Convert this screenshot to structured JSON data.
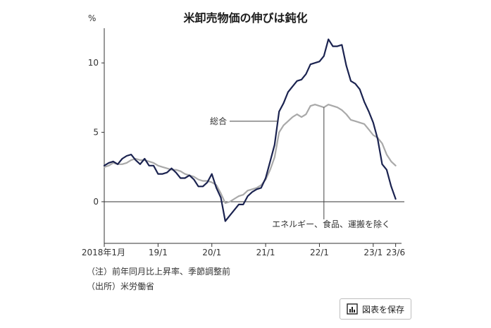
{
  "title": "米卸売物価の伸びは鈍化",
  "footnotes": {
    "note": "（注）前年同月比上昇率、季節調整前",
    "source": "（出所）米労働省"
  },
  "save_button": {
    "label": "図表を保存",
    "icon": "bar-chart-icon"
  },
  "chart_data": {
    "type": "line",
    "title": "米卸売物価の伸びは鈍化",
    "ylabel": "%",
    "ylim": [
      -3,
      12.5
    ],
    "yticks": [
      0,
      5,
      10
    ],
    "xlim": [
      2018.0,
      2023.5
    ],
    "xtick_labels": [
      {
        "x": 2018.0,
        "label": "2018年1月"
      },
      {
        "x": 2019.0,
        "label": "19/1"
      },
      {
        "x": 2020.0,
        "label": "20/1"
      },
      {
        "x": 2021.0,
        "label": "21/1"
      },
      {
        "x": 2022.0,
        "label": "22/1"
      },
      {
        "x": 2023.0,
        "label": "23/1"
      },
      {
        "x": 2023.4167,
        "label": "23/6"
      }
    ],
    "annotations": [
      {
        "series": "総合",
        "label": "総合"
      },
      {
        "series": "エネルギー、食品、運搬を除く",
        "label": "エネルギー、食品、運搬を除く"
      }
    ],
    "grid": false,
    "colors": {
      "総合": "#1b2350",
      "エネルギー、食品、運搬を除く": "#a9a9a9"
    },
    "series": [
      {
        "name": "総合",
        "x": [
          2018.0,
          2018.0833,
          2018.1667,
          2018.25,
          2018.3333,
          2018.4167,
          2018.5,
          2018.5833,
          2018.6667,
          2018.75,
          2018.8333,
          2018.9167,
          2019.0,
          2019.0833,
          2019.1667,
          2019.25,
          2019.3333,
          2019.4167,
          2019.5,
          2019.5833,
          2019.6667,
          2019.75,
          2019.8333,
          2019.9167,
          2020.0,
          2020.0833,
          2020.1667,
          2020.25,
          2020.3333,
          2020.4167,
          2020.5,
          2020.5833,
          2020.6667,
          2020.75,
          2020.8333,
          2020.9167,
          2021.0,
          2021.0833,
          2021.1667,
          2021.25,
          2021.3333,
          2021.4167,
          2021.5,
          2021.5833,
          2021.6667,
          2021.75,
          2021.8333,
          2021.9167,
          2022.0,
          2022.0833,
          2022.1667,
          2022.25,
          2022.3333,
          2022.4167,
          2022.5,
          2022.5833,
          2022.6667,
          2022.75,
          2022.8333,
          2022.9167,
          2023.0,
          2023.0833,
          2023.1667,
          2023.25,
          2023.3333,
          2023.4167
        ],
        "values": [
          2.6,
          2.8,
          2.9,
          2.7,
          3.1,
          3.3,
          3.4,
          3.0,
          2.7,
          3.1,
          2.6,
          2.6,
          2.0,
          2.0,
          2.1,
          2.4,
          2.1,
          1.7,
          1.7,
          1.9,
          1.6,
          1.1,
          1.1,
          1.4,
          2.0,
          1.0,
          0.3,
          -1.4,
          -1.0,
          -0.6,
          -0.2,
          -0.2,
          0.4,
          0.7,
          0.9,
          1.0,
          1.7,
          2.9,
          4.1,
          6.5,
          7.1,
          7.9,
          8.3,
          8.7,
          8.8,
          9.2,
          9.9,
          10.0,
          10.1,
          10.5,
          11.7,
          11.2,
          11.2,
          11.3,
          9.8,
          8.7,
          8.5,
          8.1,
          7.2,
          6.5,
          5.7,
          4.5,
          2.7,
          2.3,
          1.1,
          0.2
        ]
      },
      {
        "name": "エネルギー、食品、運搬を除く",
        "x": [
          2018.0,
          2018.0833,
          2018.1667,
          2018.25,
          2018.3333,
          2018.4167,
          2018.5,
          2018.5833,
          2018.6667,
          2018.75,
          2018.8333,
          2018.9167,
          2019.0,
          2019.0833,
          2019.1667,
          2019.25,
          2019.3333,
          2019.4167,
          2019.5,
          2019.5833,
          2019.6667,
          2019.75,
          2019.8333,
          2019.9167,
          2020.0,
          2020.0833,
          2020.1667,
          2020.25,
          2020.3333,
          2020.4167,
          2020.5,
          2020.5833,
          2020.6667,
          2020.75,
          2020.8333,
          2020.9167,
          2021.0,
          2021.0833,
          2021.1667,
          2021.25,
          2021.3333,
          2021.4167,
          2021.5,
          2021.5833,
          2021.6667,
          2021.75,
          2021.8333,
          2021.9167,
          2022.0,
          2022.0833,
          2022.1667,
          2022.25,
          2022.3333,
          2022.4167,
          2022.5,
          2022.5833,
          2022.6667,
          2022.75,
          2022.8333,
          2022.9167,
          2023.0,
          2023.0833,
          2023.1667,
          2023.25,
          2023.3333,
          2023.4167
        ],
        "values": [
          2.5,
          2.6,
          2.8,
          2.7,
          2.7,
          2.8,
          3.0,
          3.1,
          3.0,
          3.0,
          2.9,
          2.8,
          2.6,
          2.5,
          2.4,
          2.3,
          2.3,
          2.2,
          2.0,
          1.9,
          1.8,
          1.6,
          1.5,
          1.5,
          1.4,
          1.2,
          0.6,
          -0.1,
          0.0,
          0.2,
          0.4,
          0.5,
          0.8,
          0.9,
          1.0,
          1.2,
          1.6,
          2.3,
          3.2,
          5.0,
          5.5,
          5.8,
          6.1,
          6.3,
          6.1,
          6.3,
          6.9,
          7.0,
          6.9,
          6.8,
          7.0,
          6.9,
          6.8,
          6.6,
          6.3,
          5.9,
          5.8,
          5.7,
          5.6,
          5.2,
          4.8,
          4.6,
          4.2,
          3.4,
          2.9,
          2.6
        ]
      }
    ]
  }
}
